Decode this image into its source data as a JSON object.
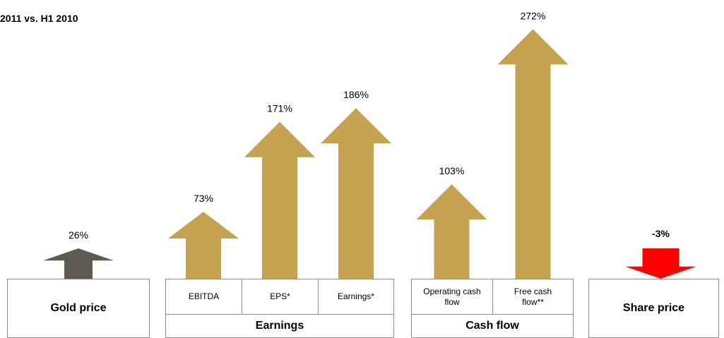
{
  "chart_data": {
    "type": "arrow",
    "title": "2011 vs. H1 2010",
    "groups": [
      {
        "name": "Gold price",
        "values": [
          26
        ],
        "value_labels": [
          "26%"
        ],
        "color": "#5f5a52"
      },
      {
        "name": "Earnings",
        "categories": [
          "EBITDA",
          "EPS*",
          "Earnings*"
        ],
        "values": [
          73,
          171,
          186
        ],
        "value_labels": [
          "73%",
          "171%",
          "186%"
        ],
        "color": "#c4a24f"
      },
      {
        "name": "Cash flow",
        "categories": [
          "Operating cash flow",
          "Free cash flow**"
        ],
        "values": [
          103,
          272
        ],
        "value_labels": [
          "103%",
          "272%"
        ],
        "color": "#c4a24f"
      },
      {
        "name": "Share price",
        "values": [
          -3
        ],
        "value_labels": [
          "-3%"
        ],
        "color": "#ff0000"
      }
    ]
  }
}
